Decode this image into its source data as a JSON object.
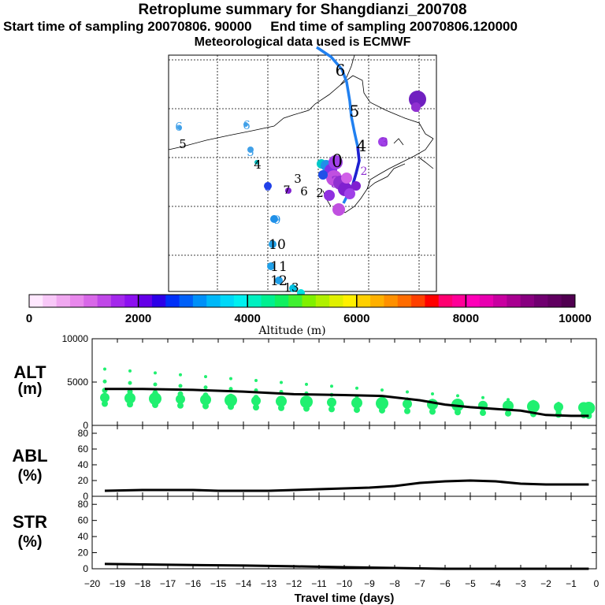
{
  "header": {
    "title": "Retroplume summary for Shangdianzi_200708",
    "sampling_line": "Start time of sampling 20070806. 90000     End time of sampling 20070806.120000",
    "met_line": "Meteorological data used is ECMWF"
  },
  "colorbar": {
    "ticks": [
      "0",
      "2000",
      "4000",
      "6000",
      "8000",
      "10000"
    ],
    "label": "Altitude (m)",
    "colors": [
      "#ffe8ff",
      "#f8c8f8",
      "#f0a8f0",
      "#e888ec",
      "#d868e8",
      "#c048e8",
      "#a428ec",
      "#8c10f0",
      "#6400e8",
      "#2c00e8",
      "#0030f8",
      "#0060f8",
      "#0090f8",
      "#00b8f8",
      "#00d8f8",
      "#00f0f0",
      "#00f0c0",
      "#00f090",
      "#10f060",
      "#40f030",
      "#80f000",
      "#b0f000",
      "#e0f000",
      "#fff000",
      "#ffd000",
      "#ffb000",
      "#ff9000",
      "#ff6c00",
      "#ff4000",
      "#ff0000",
      "#ff0070",
      "#ff0098",
      "#ff00b8",
      "#e800b0",
      "#c800a0",
      "#a80090",
      "#880080",
      "#700070",
      "#600060",
      "#500050"
    ]
  },
  "map": {
    "labels": [
      {
        "t": "6",
        "c": "#40a0e8"
      },
      {
        "t": "5",
        "c": "#000"
      },
      {
        "t": "6",
        "c": "#40a0e8"
      },
      {
        "t": "5",
        "c": "#40a0e8"
      },
      {
        "t": "4",
        "c": "#000"
      },
      {
        "t": "3",
        "c": "#000"
      },
      {
        "t": "8",
        "c": "#2040e8"
      },
      {
        "t": "7",
        "c": "#000"
      },
      {
        "t": "6",
        "c": "#000"
      },
      {
        "t": "2",
        "c": "#000"
      },
      {
        "t": "9",
        "c": "#2090e8"
      },
      {
        "t": "10",
        "c": "#000"
      },
      {
        "t": "11",
        "c": "#000"
      },
      {
        "t": "12",
        "c": "#000"
      },
      {
        "t": "13",
        "c": "#000"
      },
      {
        "t": "6",
        "c": "#000"
      },
      {
        "t": "5",
        "c": "#000"
      },
      {
        "t": "4",
        "c": "#000"
      },
      {
        "t": "3",
        "c": "#9030d0"
      },
      {
        "t": "4",
        "c": "#9030d0"
      },
      {
        "t": "3",
        "c": "#9030d0"
      },
      {
        "t": "0",
        "c": "#000"
      },
      {
        "t": "2",
        "c": "#9030d0"
      }
    ]
  },
  "chart_data": [
    {
      "type": "line",
      "name": "ALT",
      "title": "ALT",
      "ylabel": "(m)",
      "ylim": [
        0,
        10000
      ],
      "yticks": [
        "0",
        "5000",
        "10000"
      ],
      "x": [
        -19.5,
        -18,
        -16,
        -14,
        -12,
        -10,
        -8.5,
        -7,
        -6,
        -5,
        -4,
        -3,
        -2,
        -1,
        -0.3
      ],
      "values": [
        4200,
        4200,
        4100,
        3900,
        3600,
        3500,
        3400,
        2900,
        2400,
        2100,
        1900,
        1700,
        1200,
        1100,
        1100
      ],
      "scatter_note": "green plume dots at each daily step"
    },
    {
      "type": "line",
      "name": "ABL",
      "title": "ABL",
      "ylabel": "(%)",
      "ylim": [
        0,
        90
      ],
      "yticks": [
        "0",
        "20",
        "40",
        "60",
        "80"
      ],
      "x": [
        -19.5,
        -18,
        -16,
        -15,
        -13,
        -11,
        -9,
        -8,
        -7,
        -6,
        -5,
        -4,
        -3,
        -2,
        -1,
        -0.3
      ],
      "values": [
        7,
        8,
        8,
        7,
        7,
        9,
        11,
        13,
        17,
        19,
        20,
        19,
        16,
        15,
        15,
        15
      ]
    },
    {
      "type": "line",
      "name": "STR",
      "title": "STR",
      "ylabel": "(%)",
      "ylim": [
        0,
        90
      ],
      "yticks": [
        "0",
        "20",
        "40",
        "60",
        "80"
      ],
      "x": [
        -19.5,
        -17,
        -14,
        -12,
        -10,
        -8,
        -6,
        -4,
        -2,
        -0.3
      ],
      "values": [
        6,
        5,
        4,
        3,
        2,
        1,
        0,
        0,
        0,
        0
      ]
    }
  ],
  "xaxis": {
    "ticks": [
      "−20",
      "−19",
      "−18",
      "−17",
      "−16",
      "−15",
      "−14",
      "−13",
      "−12",
      "−11",
      "−10",
      "−9",
      "−8",
      "−7",
      "−6",
      "−5",
      "−4",
      "−3",
      "−2",
      "−1",
      "0"
    ],
    "label": "Travel time (days)"
  }
}
